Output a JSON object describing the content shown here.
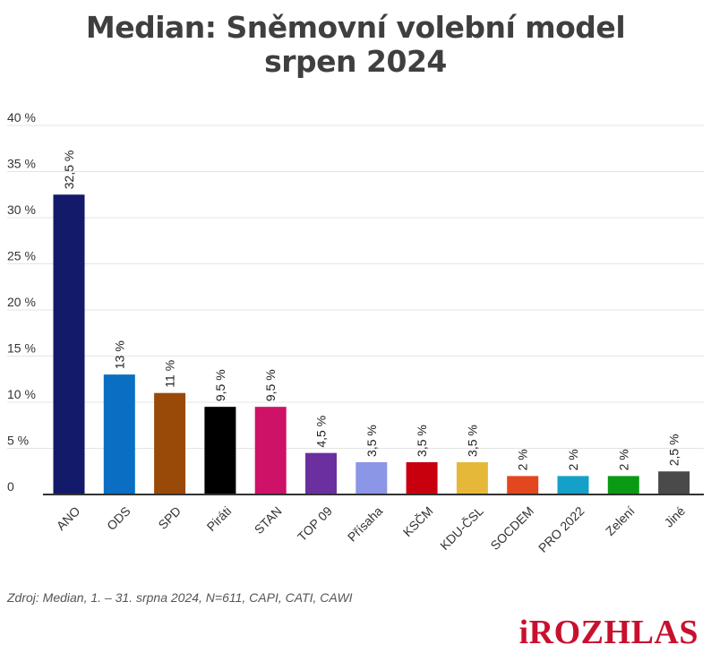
{
  "title_line1": "Median: Sněmovní volební model",
  "title_line2": "srpen 2024",
  "source": "Zdroj: Median, 1. – 31. srpna 2024, N=611, CAPI, CATI, CAWI",
  "logo": "iROZHLAS",
  "chart_data": {
    "type": "bar",
    "title": "Median: Sněmovní volební model srpen 2024",
    "categories": [
      "ANO",
      "ODS",
      "SPD",
      "Piráti",
      "STAN",
      "TOP 09",
      "Přísaha",
      "KSČM",
      "KDU-ČSL",
      "SOCDEM",
      "PRO 2022",
      "Zelení",
      "Jiné"
    ],
    "values": [
      32.5,
      13,
      11,
      9.5,
      9.5,
      4.5,
      3.5,
      3.5,
      3.5,
      2,
      2,
      2,
      2.5
    ],
    "value_labels": [
      "32,5 %",
      "13 %",
      "11 %",
      "9,5 %",
      "9,5 %",
      "4,5 %",
      "3,5 %",
      "3,5 %",
      "3,5 %",
      "2 %",
      "2 %",
      "2 %",
      "2,5 %"
    ],
    "colors": [
      "#131a6a",
      "#0a6fc2",
      "#9a4a08",
      "#000000",
      "#cd1267",
      "#6b2fa0",
      "#8c96e6",
      "#c8000e",
      "#e5b83a",
      "#e2471f",
      "#14a0c8",
      "#0a9a14",
      "#4a4a4a"
    ],
    "ylim": [
      0,
      40
    ],
    "yticks": [
      0,
      5,
      10,
      15,
      20,
      25,
      30,
      35,
      40
    ],
    "ytick_labels": [
      "0",
      "5 %",
      "10 %",
      "15 %",
      "20 %",
      "25 %",
      "30 %",
      "35 %",
      "40 %"
    ],
    "xlabel": "",
    "ylabel": "",
    "grid": true,
    "legend": "none"
  }
}
